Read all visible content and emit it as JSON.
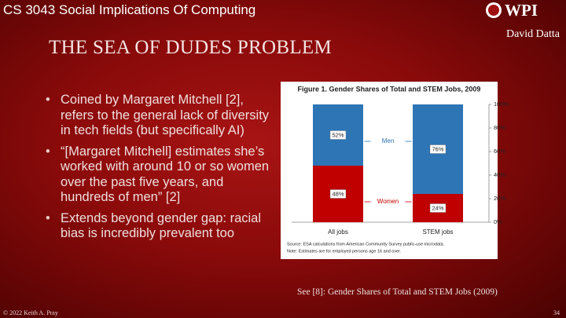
{
  "header": {
    "course": "CS 3043 Social Implications Of Computing",
    "logo_text": "WPI",
    "author": "David Datta"
  },
  "title": "THE SEA OF DUDES PROBLEM",
  "bullets": [
    "Coined by Margaret Mitchell [2], refers to the general lack of diversity in tech fields (but specifically AI)",
    "“[Margaret Mitchell] estimates she’s worked with around 10 or so women over the past five years, and hundreds of men” [2]",
    "Extends beyond gender gap: racial bias is incredibly prevalent too"
  ],
  "chart_data": {
    "type": "stacked-bar",
    "title": "Figure 1. Gender Shares of Total and STEM Jobs, 2009",
    "categories": [
      "All jobs",
      "STEM jobs"
    ],
    "series": [
      {
        "name": "Women",
        "color": "#c00000",
        "values": [
          48,
          24
        ],
        "value_labels": [
          "48%",
          "24%"
        ]
      },
      {
        "name": "Men",
        "color": "#2e75b6",
        "values": [
          52,
          76
        ],
        "value_labels": [
          "52%",
          "76%"
        ]
      }
    ],
    "ylim": [
      0,
      100
    ],
    "yticks": [
      {
        "value": 0,
        "label": "0%"
      },
      {
        "value": 20,
        "label": "20%"
      },
      {
        "value": 40,
        "label": "40%"
      },
      {
        "value": 60,
        "label": "60%"
      },
      {
        "value": 80,
        "label": "80%"
      },
      {
        "value": 100,
        "label": "100%"
      }
    ],
    "notes": [
      "Source:  ESA calculations from American Community Survey public-use microdata.",
      "Note: Estimates are for employed persons age 16 and over."
    ]
  },
  "caption": "See [8]: Gender Shares of Total and STEM Jobs (2009)",
  "footer": {
    "copyright": "© 2022 Keith A. Pray",
    "page": "34"
  }
}
